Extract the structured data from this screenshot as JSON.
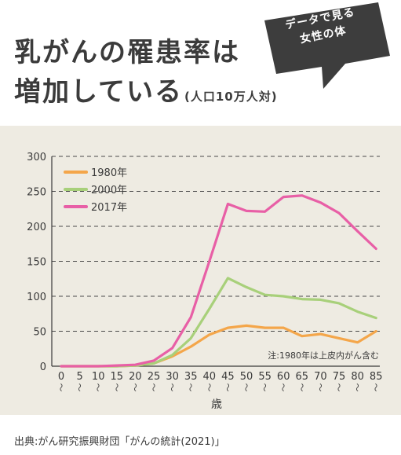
{
  "headline": {
    "line1": "乳がんの罹患率は",
    "line2": "増加している",
    "unit": "(人口10万人対)"
  },
  "badge": {
    "line1": "データで見る",
    "line2": "女性の体",
    "color": "#3d3d3d"
  },
  "chart_data": {
    "type": "line",
    "x": [
      "0",
      "5",
      "10",
      "15",
      "20",
      "25",
      "30",
      "35",
      "40",
      "45",
      "50",
      "55",
      "60",
      "65",
      "70",
      "75",
      "80",
      "85"
    ],
    "x_tick_marks": "〜",
    "xlabel": "歳",
    "ylabel": "",
    "ylim": [
      0,
      300
    ],
    "yticks": [
      "0",
      "50",
      "100",
      "150",
      "200",
      "250",
      "300"
    ],
    "grid": "horizontal dashed",
    "legend_position": "top-left",
    "note": "注:1980年は上皮内がん含む",
    "background": "#eeebe2",
    "series": [
      {
        "name": "1980年",
        "color": "#f4a64a",
        "values": [
          0,
          0,
          0,
          0,
          1,
          4,
          14,
          28,
          45,
          55,
          58,
          55,
          55,
          43,
          46,
          40,
          34,
          50
        ]
      },
      {
        "name": "2000年",
        "color": "#a8d07a",
        "values": [
          0,
          0,
          0,
          0,
          1,
          4,
          16,
          40,
          82,
          126,
          113,
          102,
          100,
          96,
          95,
          90,
          78,
          69
        ]
      },
      {
        "name": "2017年",
        "color": "#e85fa6",
        "values": [
          0,
          0,
          0,
          1,
          2,
          8,
          26,
          70,
          150,
          232,
          222,
          221,
          242,
          244,
          234,
          219,
          193,
          168
        ]
      }
    ]
  },
  "source": "出典:がん研究振興財団「がんの統計(2021)」"
}
